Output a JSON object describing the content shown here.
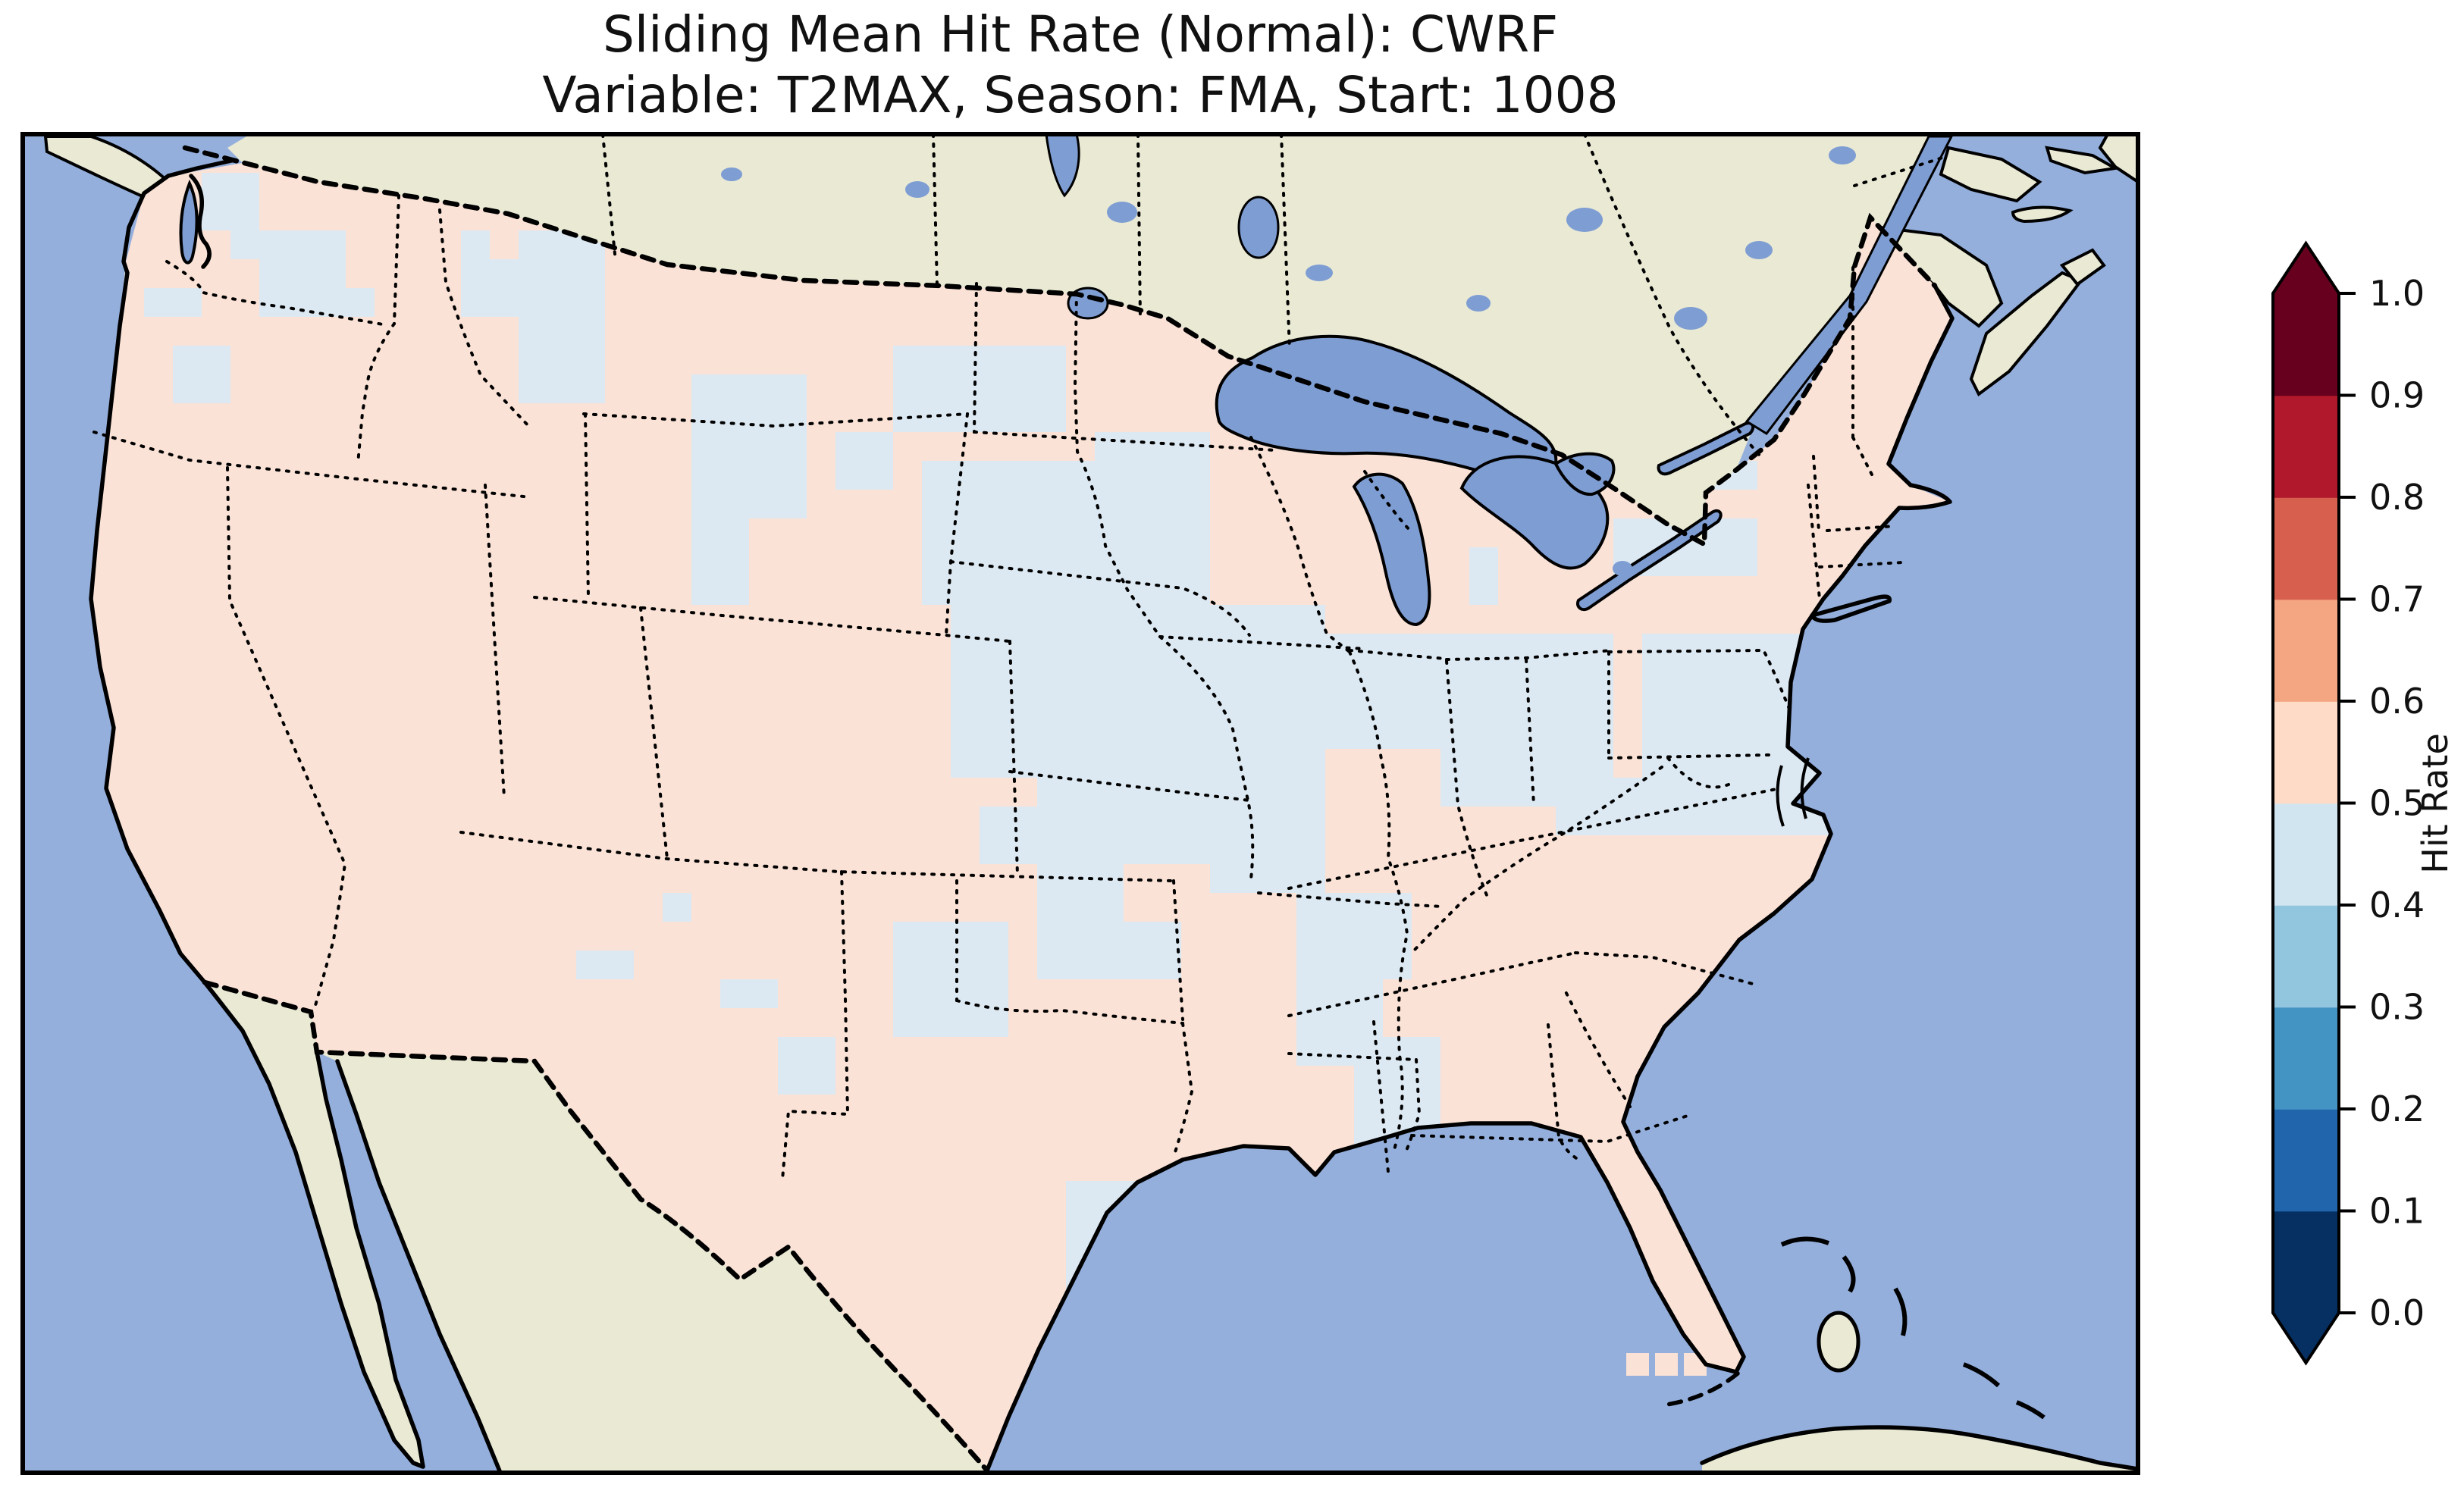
{
  "chart_data": {
    "type": "heatmap",
    "title": "Sliding Mean Hit Rate (Normal): CWRF",
    "subtitle": "Variable: T2MAX, Season: FMA, Start: 1008",
    "model": "CWRF",
    "variable": "T2MAX",
    "season": "FMA",
    "start": "1008",
    "metric": "Hit Rate",
    "map_region": "Continental United States with surrounding Canada, Mexico, Atlantic Ocean, Gulf of Mexico and Great Lakes (Lambert-conformal style view)",
    "colorbar": {
      "label": "Hit Rate",
      "orientation": "vertical",
      "position": "right",
      "range": [
        0.0,
        1.0
      ],
      "ticks": [
        "0.0",
        "0.1",
        "0.2",
        "0.3",
        "0.4",
        "0.5",
        "0.6",
        "0.7",
        "0.8",
        "0.9",
        "1.0"
      ],
      "extend": "both",
      "bin_colors_low_to_high": [
        "#053061",
        "#2166ac",
        "#4393c3",
        "#92c5de",
        "#d1e5f0",
        "#fddbc7",
        "#f4a582",
        "#d6604d",
        "#b2182b",
        "#67001f"
      ],
      "under_arrow_color": "#053061",
      "over_arrow_color": "#67001f"
    },
    "map_colors": {
      "ocean": "#94afdc",
      "non_us_land": "#e9e9d4",
      "lakes": "#7e9dd3",
      "cell_bin_0_5_to_0_6": "#fae2d6",
      "cell_bin_0_4_to_0_5": "#dde9f2",
      "coastline": "#000000"
    },
    "value_summary": "Gridded hit-rate field over CONUS: most grid cells fall in the 0.5-0.6 bin (pale red); scattered patches in the 0.4-0.5 bin (pale blue) over western Washington, the northern Rockies, central Montana, the eastern Dakotas-Minnesota-Iowa plains, Missouri-Illinois, the Ohio Valley, Virginia-Carolinas, Mississippi-Alabama, parts of Texas, Oklahoma and central New York. No cells below 0.4 or above 0.6 are visible.",
    "cell_size": 38,
    "low_bin_patches": [
      [
        250,
        225,
        75,
        90
      ],
      [
        312,
        225,
        40,
        105
      ],
      [
        350,
        305,
        125,
        100
      ],
      [
        195,
        385,
        58,
        50
      ],
      [
        225,
        455,
        70,
        60
      ],
      [
        458,
        390,
        48,
        28
      ],
      [
        590,
        300,
        52,
        105
      ],
      [
        655,
        325,
        48,
        62
      ],
      [
        700,
        300,
        120,
        230
      ],
      [
        925,
        495,
        170,
        200
      ],
      [
        930,
        640,
        90,
        160
      ],
      [
        1090,
        555,
        70,
        90
      ],
      [
        1195,
        470,
        225,
        130
      ],
      [
        1200,
        600,
        300,
        190
      ],
      [
        1260,
        790,
        340,
        210
      ],
      [
        1450,
        560,
        135,
        230
      ],
      [
        1600,
        790,
        160,
        110
      ],
      [
        1380,
        820,
        230,
        290
      ],
      [
        1580,
        880,
        170,
        320
      ],
      [
        1700,
        850,
        200,
        170
      ],
      [
        1900,
        850,
        220,
        210
      ],
      [
        2150,
        850,
        270,
        250
      ],
      [
        2050,
        1030,
        370,
        80
      ],
      [
        2120,
        675,
        185,
        78
      ],
      [
        2230,
        618,
        62,
        45
      ],
      [
        1160,
        1200,
        135,
        140
      ],
      [
        1360,
        1200,
        180,
        90
      ],
      [
        1700,
        1180,
        140,
        120
      ],
      [
        1396,
        1570,
        120,
        185
      ],
      [
        1036,
        1370,
        60,
        60
      ],
      [
        955,
        1310,
        60,
        50
      ],
      [
        760,
        1255,
        60,
        45
      ],
      [
        855,
        1165,
        45,
        40
      ],
      [
        1720,
        1300,
        100,
        130
      ],
      [
        1790,
        1380,
        130,
        180
      ],
      [
        2186,
        1438,
        85,
        100
      ],
      [
        1950,
        720,
        50,
        60
      ],
      [
        2360,
        930,
        50,
        45
      ],
      [
        1300,
        1050,
        90,
        90
      ],
      [
        1380,
        1100,
        120,
        100
      ]
    ],
    "keys_cells": [
      [
        2145,
        1785
      ],
      [
        2183,
        1785
      ],
      [
        2221,
        1785
      ]
    ]
  }
}
